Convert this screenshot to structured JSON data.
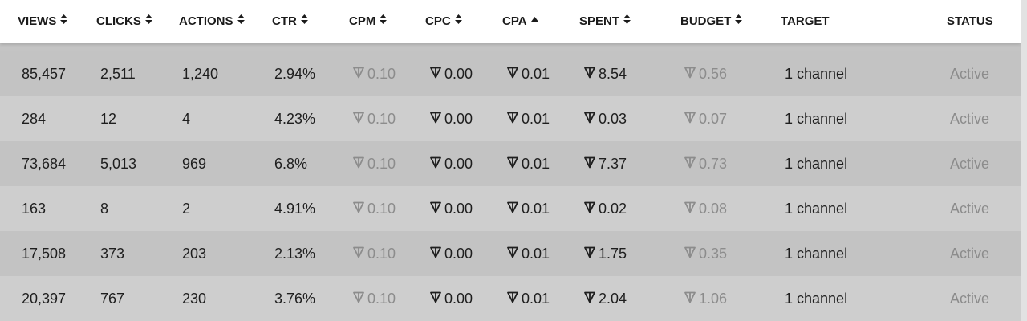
{
  "columns": [
    {
      "key": "views",
      "label": "VIEWS",
      "sort": "both"
    },
    {
      "key": "clicks",
      "label": "CLICKS",
      "sort": "both"
    },
    {
      "key": "actions",
      "label": "ACTIONS",
      "sort": "both"
    },
    {
      "key": "ctr",
      "label": "CTR",
      "sort": "both"
    },
    {
      "key": "cpm",
      "label": "CPM",
      "sort": "both"
    },
    {
      "key": "cpc",
      "label": "CPC",
      "sort": "both"
    },
    {
      "key": "cpa",
      "label": "CPA",
      "sort": "asc"
    },
    {
      "key": "spent",
      "label": "SPENT",
      "sort": "both"
    },
    {
      "key": "budget",
      "label": "BUDGET",
      "sort": "both"
    },
    {
      "key": "target",
      "label": "TARGET",
      "sort": "none"
    },
    {
      "key": "status",
      "label": "STATUS",
      "sort": "none"
    }
  ],
  "rows": [
    {
      "views": "85,457",
      "clicks": "2,511",
      "actions": "1,240",
      "ctr": "2.94%",
      "cpm": "0.10",
      "cpc": "0.00",
      "cpa": "0.01",
      "spent": "8.54",
      "budget": "0.56",
      "target": "1 channel",
      "status": "Active"
    },
    {
      "views": "284",
      "clicks": "12",
      "actions": "4",
      "ctr": "4.23%",
      "cpm": "0.10",
      "cpc": "0.00",
      "cpa": "0.01",
      "spent": "0.03",
      "budget": "0.07",
      "target": "1 channel",
      "status": "Active"
    },
    {
      "views": "73,684",
      "clicks": "5,013",
      "actions": "969",
      "ctr": "6.8%",
      "cpm": "0.10",
      "cpc": "0.00",
      "cpa": "0.01",
      "spent": "7.37",
      "budget": "0.73",
      "target": "1 channel",
      "status": "Active"
    },
    {
      "views": "163",
      "clicks": "8",
      "actions": "2",
      "ctr": "4.91%",
      "cpm": "0.10",
      "cpc": "0.00",
      "cpa": "0.01",
      "spent": "0.02",
      "budget": "0.08",
      "target": "1 channel",
      "status": "Active"
    },
    {
      "views": "17,508",
      "clicks": "373",
      "actions": "203",
      "ctr": "2.13%",
      "cpm": "0.10",
      "cpc": "0.00",
      "cpa": "0.01",
      "spent": "1.75",
      "budget": "0.35",
      "target": "1 channel",
      "status": "Active"
    },
    {
      "views": "20,397",
      "clicks": "767",
      "actions": "230",
      "ctr": "3.76%",
      "cpm": "0.10",
      "cpc": "0.00",
      "cpa": "0.01",
      "spent": "2.04",
      "budget": "1.06",
      "target": "1 channel",
      "status": "Active"
    }
  ],
  "currency_icon": "ton-icon",
  "colors": {
    "header_bg": "#ffffff",
    "row_dark": "#c3c3c3",
    "row_light": "#cecece",
    "text_primary": "#1e1e1e",
    "text_muted": "#8c8c8c"
  }
}
